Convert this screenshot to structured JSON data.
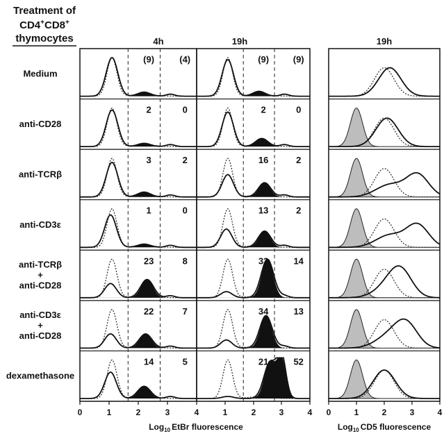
{
  "header": {
    "treatment_line1": "Treatment of",
    "treatment_line2": "CD4",
    "treatment_line2_sup": "+",
    "treatment_line2b": "CD8",
    "treatment_line2b_sup": "+",
    "treatment_line3": "thymocytes",
    "col_4h": "4h",
    "col_19h_a": "19h",
    "col_19h_b": "19h"
  },
  "rows": [
    {
      "label": [
        "Medium"
      ],
      "n4": [
        "(9)",
        "(4)"
      ],
      "n19": [
        "(9)",
        "(9)"
      ]
    },
    {
      "label": [
        "anti-CD28"
      ],
      "n4": [
        "2",
        "0"
      ],
      "n19": [
        "2",
        "0"
      ]
    },
    {
      "label": [
        "anti-TCRβ"
      ],
      "n4": [
        "3",
        "2"
      ],
      "n19": [
        "16",
        "2"
      ]
    },
    {
      "label": [
        "anti-CD3ε"
      ],
      "n4": [
        "1",
        "0"
      ],
      "n19": [
        "13",
        "2"
      ]
    },
    {
      "label": [
        "anti-TCRβ",
        "+",
        "anti-CD28"
      ],
      "n4": [
        "23",
        "8"
      ],
      "n19": [
        "33",
        "14"
      ]
    },
    {
      "label": [
        "anti-CD3ε",
        "+",
        "anti-CD28"
      ],
      "n4": [
        "22",
        "7"
      ],
      "n19": [
        "34",
        "13"
      ]
    },
    {
      "label": [
        "dexamethasone"
      ],
      "n4": [
        "14",
        "5"
      ],
      "n19": [
        "21",
        "52"
      ]
    }
  ],
  "x_axis_left": {
    "ticks": [
      "0",
      "1",
      "2",
      "3",
      "4",
      "1",
      "2",
      "3",
      "4"
    ],
    "label_prefix": "Log",
    "label_sub": "10",
    "label_suffix": "EtBr fluorescence"
  },
  "x_axis_right": {
    "ticks": [
      "0",
      "1",
      "2",
      "3",
      "4"
    ],
    "label_prefix": "Log",
    "label_sub": "10",
    "label_suffix": "CD5 fluorescence"
  },
  "chart_data": [
    {
      "type": "area",
      "panel": "EtBr 4h",
      "x_range": [
        0,
        4
      ],
      "gates": [
        1.65,
        2.75
      ],
      "rows": [
        "Medium",
        "anti-CD28",
        "anti-TCRβ",
        "anti-CD3ε",
        "anti-TCRβ + anti-CD28",
        "anti-CD3ε + anti-CD28",
        "dexamethasone"
      ],
      "gate_counts": [
        [
          "(9)",
          "(4)"
        ],
        [
          "2",
          "0"
        ],
        [
          "3",
          "2"
        ],
        [
          "1",
          "0"
        ],
        [
          "23",
          "8"
        ],
        [
          "22",
          "7"
        ],
        [
          "14",
          "5"
        ]
      ],
      "peak_main": [
        1.1,
        1.1,
        1.1,
        1.05,
        1.05,
        1.05,
        1.05
      ],
      "peak_main_height": [
        0.95,
        0.9,
        0.85,
        0.8,
        0.35,
        0.35,
        0.65
      ],
      "apoptotic_peak": [
        2.2,
        2.2,
        2.2,
        2.2,
        2.3,
        2.25,
        2.2
      ],
      "apoptotic_height": [
        0.1,
        0.08,
        0.12,
        0.08,
        0.45,
        0.35,
        0.3
      ]
    },
    {
      "type": "area",
      "panel": "EtBr 19h",
      "x_range": [
        0,
        4
      ],
      "gates": [
        1.65,
        2.75
      ],
      "rows": [
        "Medium",
        "anti-CD28",
        "anti-TCRβ",
        "anti-CD3ε",
        "anti-TCRβ + anti-CD28",
        "anti-CD3ε + anti-CD28",
        "dexamethasone"
      ],
      "gate_counts": [
        [
          "(9)",
          "(9)"
        ],
        [
          "2",
          "0"
        ],
        [
          "16",
          "2"
        ],
        [
          "13",
          "2"
        ],
        [
          "33",
          "14"
        ],
        [
          "34",
          "13"
        ],
        [
          "21",
          "52"
        ]
      ],
      "peak_main": [
        1.1,
        1.1,
        1.1,
        1.05,
        1.05,
        1.05,
        1.1
      ],
      "peak_main_height": [
        0.9,
        0.85,
        0.55,
        0.45,
        0.15,
        0.2,
        0.05
      ],
      "apoptotic_peak": [
        2.2,
        2.3,
        2.4,
        2.4,
        2.5,
        2.45,
        2.6
      ],
      "apoptotic_height": [
        0.12,
        0.2,
        0.35,
        0.4,
        0.95,
        0.8,
        0.9
      ]
    },
    {
      "type": "area",
      "panel": "CD5 19h",
      "x_range": [
        0,
        4
      ],
      "rows": [
        "Medium",
        "anti-CD28",
        "anti-TCRβ",
        "anti-CD3ε",
        "anti-TCRβ + anti-CD28",
        "anti-CD3ε + anti-CD28",
        "dexamethasone"
      ],
      "shaded_peak": [
        null,
        1.0,
        1.0,
        1.0,
        1.0,
        1.0,
        1.0
      ],
      "solid_peak": [
        2.2,
        2.1,
        3.2,
        3.2,
        2.6,
        2.8,
        2.0
      ],
      "dotted_peak": [
        2.0,
        2.0,
        2.0,
        2.0,
        2.0,
        2.0,
        2.0
      ]
    }
  ]
}
